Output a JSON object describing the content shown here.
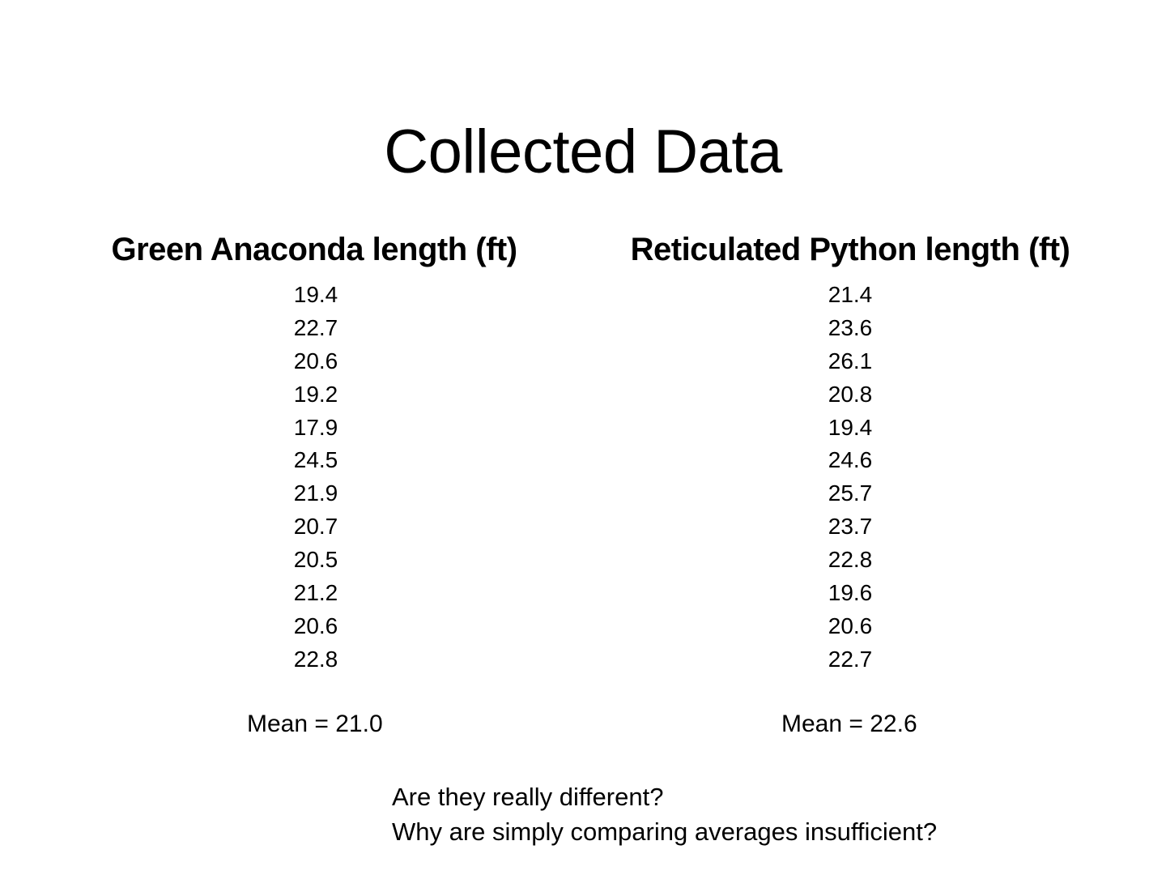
{
  "slide": {
    "title": "Collected Data",
    "columns": [
      {
        "header": "Green Anaconda length (ft)",
        "values": [
          "19.4",
          "22.7",
          "20.6",
          "19.2",
          "17.9",
          "24.5",
          "21.9",
          "20.7",
          "20.5",
          "21.2",
          "20.6",
          "22.8"
        ],
        "mean_label": "Mean = 21.0"
      },
      {
        "header": "Reticulated Python length (ft)",
        "values": [
          "21.4",
          "23.6",
          "26.1",
          "20.8",
          "19.4",
          "24.6",
          "25.7",
          "23.7",
          "22.8",
          "19.6",
          "20.6",
          "22.7"
        ],
        "mean_label": "Mean = 22.6"
      }
    ],
    "questions": [
      "Are they really different?",
      "Why are simply comparing averages insufficient?"
    ]
  },
  "chart_data": {
    "type": "table",
    "title": "Collected Data",
    "columns": [
      "Green Anaconda length (ft)",
      "Reticulated Python length (ft)"
    ],
    "rows": [
      [
        19.4,
        21.4
      ],
      [
        22.7,
        23.6
      ],
      [
        20.6,
        26.1
      ],
      [
        19.2,
        20.8
      ],
      [
        17.9,
        19.4
      ],
      [
        24.5,
        24.6
      ],
      [
        21.9,
        25.7
      ],
      [
        20.7,
        23.7
      ],
      [
        20.5,
        22.8
      ],
      [
        21.2,
        19.6
      ],
      [
        20.6,
        20.6
      ],
      [
        22.8,
        22.7
      ]
    ],
    "means": [
      21.0,
      22.6
    ]
  }
}
